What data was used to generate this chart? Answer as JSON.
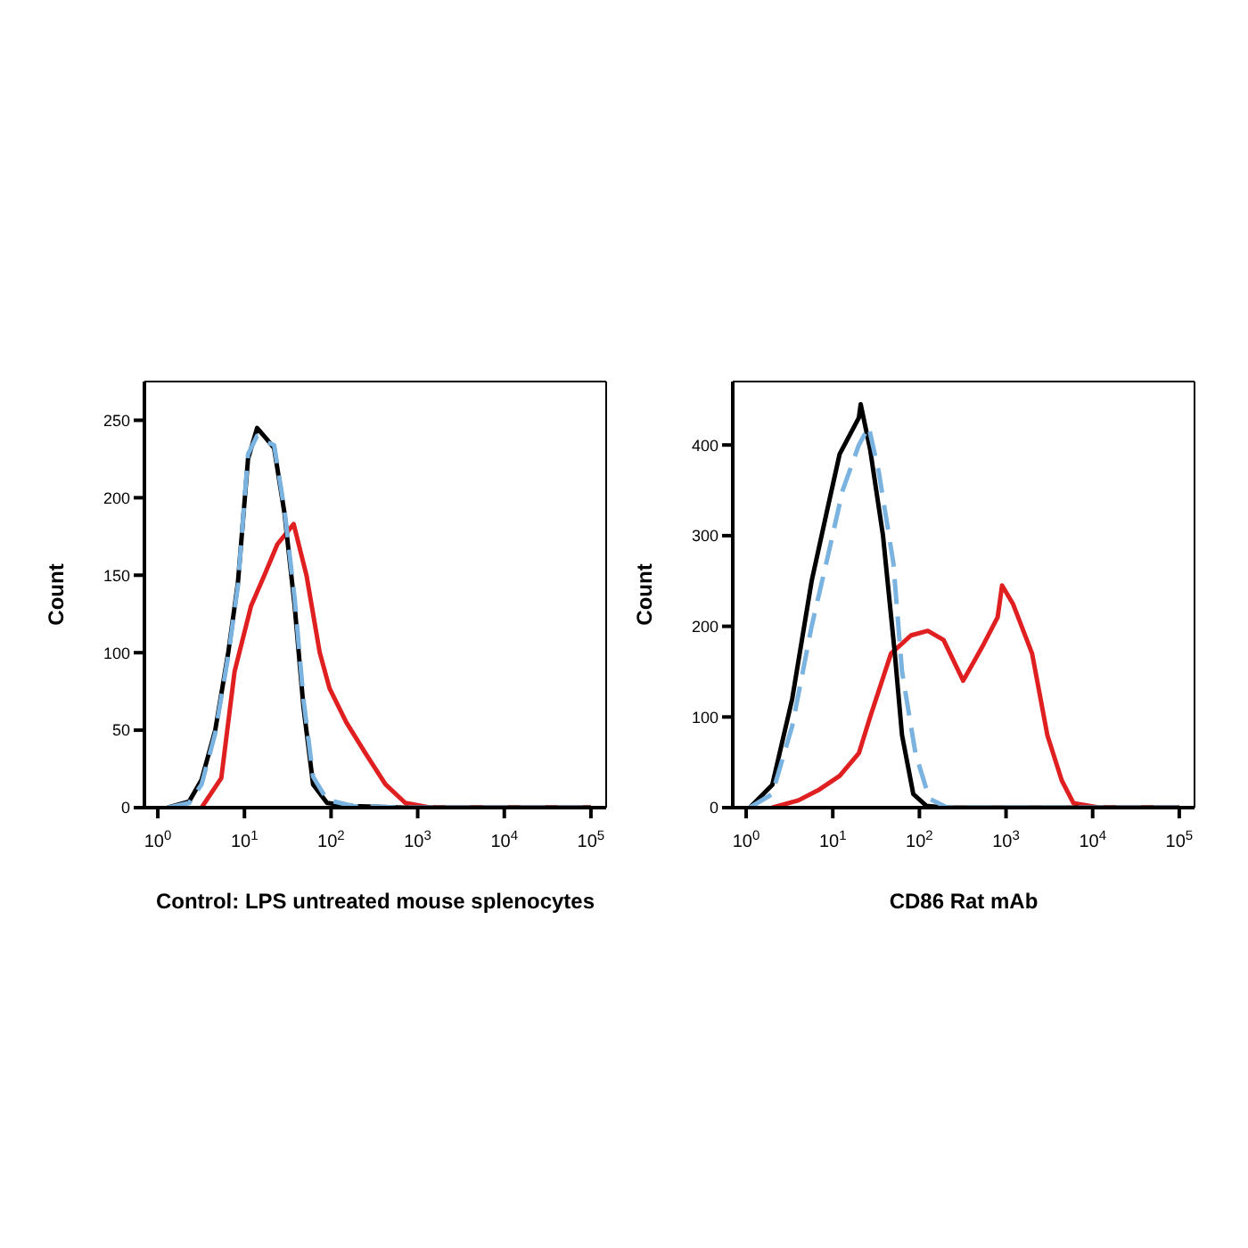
{
  "chart_data": [
    {
      "type": "line",
      "xlabel": "Control: LPS untreated mouse splenocytes",
      "ylabel": "Count",
      "log": "x",
      "xlim": [
        0.7,
        150000
      ],
      "ylim": [
        0,
        275
      ],
      "yticks": [
        0,
        50,
        100,
        150,
        200,
        250
      ],
      "xticks": [
        {
          "value": 1,
          "label": "10$^{0}$"
        },
        {
          "value": 10,
          "label": "10$^{1}$"
        },
        {
          "value": 100,
          "label": "10$^{2}$"
        },
        {
          "value": 1000,
          "label": "10$^{3}$"
        },
        {
          "value": 10000,
          "label": "10$^{4}$"
        },
        {
          "value": 100000,
          "label": "10$^{5}$"
        }
      ],
      "series": [
        {
          "color": "#e02020",
          "line_style": "solid",
          "x": [
            3.2,
            5.4,
            7.7,
            11.9,
            17,
            24,
            37,
            52,
            74,
            96,
            150,
            250,
            425,
            720,
            1400,
            100000
          ],
          "values": [
            0,
            19,
            88,
            130,
            150,
            170,
            183,
            150,
            100,
            77,
            55,
            35,
            15,
            3,
            0,
            0
          ]
        },
        {
          "color": "#000000",
          "line_style": "solid",
          "x": [
            1.3,
            2.3,
            3.2,
            4.6,
            6.5,
            8.4,
            11,
            14,
            18,
            22,
            29,
            38,
            48,
            62,
            90,
            180,
            700,
            100000
          ],
          "values": [
            0,
            4,
            18,
            50,
            100,
            145,
            225,
            245,
            238,
            232,
            190,
            130,
            65,
            15,
            3,
            1,
            0,
            0
          ]
        },
        {
          "color": "#7ab3e0",
          "line_style": "dashed",
          "x": [
            1.3,
            2.3,
            3.2,
            4.6,
            6.5,
            8.4,
            11,
            14,
            18,
            22,
            29,
            38,
            48,
            62,
            90,
            180,
            700,
            100000
          ],
          "values": [
            0,
            3,
            15,
            48,
            98,
            143,
            228,
            240,
            236,
            234,
            192,
            135,
            70,
            20,
            5,
            1,
            0,
            0
          ]
        }
      ]
    },
    {
      "type": "line",
      "xlabel": "CD86 Rat mAb",
      "ylabel": "Count",
      "log": "x",
      "xlim": [
        0.7,
        150000
      ],
      "ylim": [
        0,
        470
      ],
      "yticks": [
        0,
        100,
        200,
        300,
        400
      ],
      "xticks": [
        {
          "value": 1,
          "label": "10$^{0}$"
        },
        {
          "value": 10,
          "label": "10$^{1}$"
        },
        {
          "value": 100,
          "label": "10$^{2}$"
        },
        {
          "value": 1000,
          "label": "10$^{3}$"
        },
        {
          "value": 10000,
          "label": "10$^{4}$"
        },
        {
          "value": 100000,
          "label": "10$^{5}$"
        }
      ],
      "series": [
        {
          "color": "#e02020",
          "line_style": "solid",
          "x": [
            2,
            4,
            7,
            12,
            20,
            27,
            47,
            80,
            125,
            190,
            320,
            550,
            800,
            900,
            1200,
            2000,
            3000,
            4400,
            6000,
            12000,
            100000
          ],
          "values": [
            0,
            8,
            20,
            35,
            60,
            100,
            170,
            190,
            195,
            185,
            140,
            180,
            210,
            245,
            225,
            170,
            80,
            30,
            5,
            0,
            0
          ]
        },
        {
          "color": "#000000",
          "line_style": "solid",
          "x": [
            1.1,
            2,
            3.4,
            5.7,
            8.7,
            12,
            20,
            21,
            27,
            38,
            52,
            63,
            85,
            120,
            200,
            4000,
            100000
          ],
          "values": [
            0,
            25,
            120,
            250,
            330,
            390,
            430,
            445,
            395,
            300,
            170,
            80,
            15,
            2,
            0,
            0,
            0
          ]
        },
        {
          "color": "#7ab3e0",
          "line_style": "dashed",
          "x": [
            1.1,
            2,
            3.4,
            5.7,
            8.9,
            13,
            20,
            26,
            34,
            50,
            63,
            90,
            130,
            210,
            100000
          ],
          "values": [
            0,
            15,
            90,
            200,
            280,
            350,
            400,
            420,
            370,
            270,
            150,
            60,
            10,
            0,
            0
          ]
        }
      ]
    }
  ]
}
